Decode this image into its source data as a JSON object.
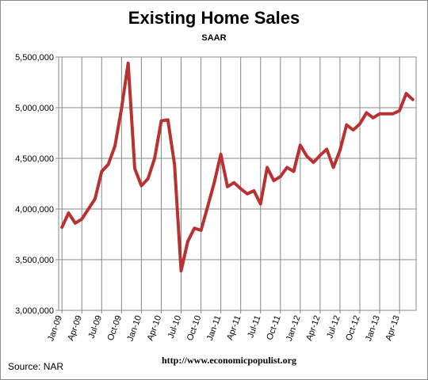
{
  "chart_data": {
    "type": "line",
    "title": "Existing Home Sales",
    "subtitle": "SAAR",
    "source": "Source:  NAR",
    "url": "http://www.economicpopulist.org",
    "ylim": [
      3000000,
      5500000
    ],
    "y_ticks": [
      "3,000,000",
      "3,500,000",
      "4,000,000",
      "4,500,000",
      "5,000,000",
      "5,500,000"
    ],
    "grid": true,
    "legend": "none",
    "line_color": "#b83232",
    "x_tick_labels": [
      "Jan-09",
      "Apr-09",
      "Jul-09",
      "Oct-09",
      "Jan-10",
      "Apr-10",
      "Jul-10",
      "Oct-10",
      "Jan-11",
      "Apr-11",
      "Jul-11",
      "Oct-11",
      "Jan-12",
      "Apr-12",
      "Jul-12",
      "Oct-12",
      "Jan-13",
      "Apr-13"
    ],
    "x": [
      "Jan-09",
      "Feb-09",
      "Mar-09",
      "Apr-09",
      "May-09",
      "Jun-09",
      "Jul-09",
      "Aug-09",
      "Sep-09",
      "Oct-09",
      "Nov-09",
      "Dec-09",
      "Jan-10",
      "Feb-10",
      "Mar-10",
      "Apr-10",
      "May-10",
      "Jun-10",
      "Jul-10",
      "Aug-10",
      "Sep-10",
      "Oct-10",
      "Nov-10",
      "Dec-10",
      "Jan-11",
      "Feb-11",
      "Mar-11",
      "Apr-11",
      "May-11",
      "Jun-11",
      "Jul-11",
      "Aug-11",
      "Sep-11",
      "Oct-11",
      "Nov-11",
      "Dec-11",
      "Jan-12",
      "Feb-12",
      "Mar-12",
      "Apr-12",
      "May-12",
      "Jun-12",
      "Jul-12",
      "Aug-12",
      "Sep-12",
      "Oct-12",
      "Nov-12",
      "Dec-12",
      "Jan-13",
      "Feb-13",
      "Mar-13",
      "Apr-13",
      "May-13",
      "Jun-13"
    ],
    "values": [
      3820000,
      3960000,
      3860000,
      3900000,
      4000000,
      4100000,
      4370000,
      4440000,
      4620000,
      4990000,
      5440000,
      4400000,
      4230000,
      4300000,
      4500000,
      4870000,
      4880000,
      4440000,
      3390000,
      3680000,
      3810000,
      3790000,
      4020000,
      4260000,
      4540000,
      4220000,
      4260000,
      4200000,
      4150000,
      4180000,
      4050000,
      4410000,
      4280000,
      4320000,
      4410000,
      4370000,
      4630000,
      4520000,
      4460000,
      4530000,
      4590000,
      4410000,
      4580000,
      4830000,
      4780000,
      4840000,
      4950000,
      4900000,
      4940000,
      4940000,
      4940000,
      4970000,
      5140000,
      5080000
    ]
  }
}
